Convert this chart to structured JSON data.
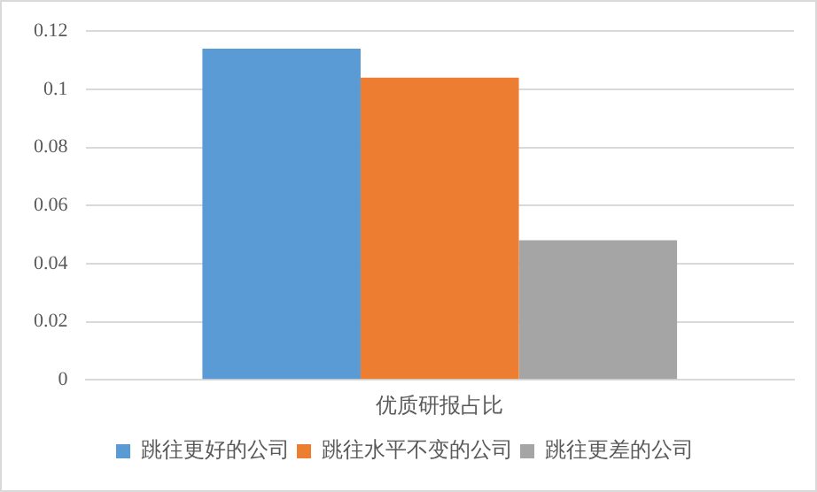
{
  "chart_data": {
    "type": "bar",
    "categories": [
      "优质研报占比"
    ],
    "series": [
      {
        "name": "跳往更好的公司",
        "color": "#5b9bd5",
        "values": [
          0.114
        ]
      },
      {
        "name": "跳往水平不变的公司",
        "color": "#ed7d31",
        "values": [
          0.104
        ]
      },
      {
        "name": "跳往更差的公司",
        "color": "#a5a5a5",
        "values": [
          0.048
        ]
      }
    ],
    "ylim": [
      0,
      0.12
    ],
    "yticks": [
      0,
      0.02,
      0.04,
      0.06,
      0.08,
      0.1,
      0.12
    ],
    "grid": "y",
    "legend": "bottom"
  }
}
